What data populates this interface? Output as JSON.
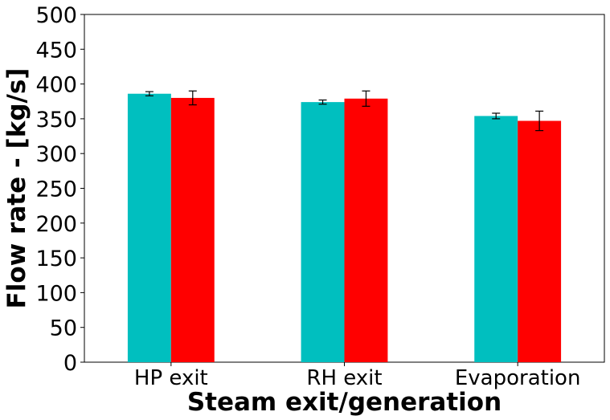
{
  "chart_data": {
    "type": "bar",
    "title": "",
    "xlabel": "Steam exit/generation",
    "ylabel": "Flow rate - [kg/s]",
    "ylim": [
      0,
      500
    ],
    "yticks": [
      0,
      50,
      100,
      150,
      200,
      250,
      300,
      350,
      400,
      450,
      500
    ],
    "categories": [
      "HP exit",
      "RH exit",
      "Evaporation"
    ],
    "grid": false,
    "legend": "none",
    "series": [
      {
        "color": "#00BFBF",
        "values": [
          386,
          374,
          354
        ],
        "errors": [
          3,
          3,
          4
        ]
      },
      {
        "color": "#FF0000",
        "values": [
          380,
          379,
          347
        ],
        "errors": [
          10,
          11,
          14
        ]
      }
    ]
  }
}
